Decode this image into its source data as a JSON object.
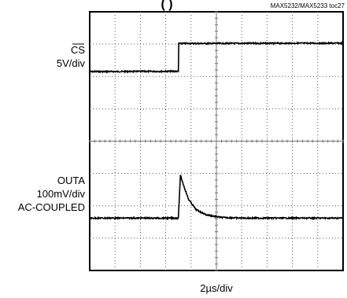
{
  "chart_data": {
    "type": "line",
    "title_fragment": "(       )",
    "part_id": "MAX5232/MAX5233 toc27",
    "channels": [
      {
        "label_lines": [
          "CS",
          "5V/div"
        ],
        "label_overline": "CS",
        "level": "upper"
      },
      {
        "label_lines": [
          "OUTA",
          "100mV/div",
          "AC-COUPLED"
        ],
        "level": "lower"
      }
    ],
    "xlabel": "2µs/div",
    "grid": true,
    "divisions": {
      "x": 10,
      "y": 8
    },
    "xlim": [
      0,
      10
    ],
    "ylim": [
      0,
      8
    ],
    "traces": [
      {
        "name": "CS",
        "points": [
          [
            0,
            6.15
          ],
          [
            3.5,
            6.16
          ],
          [
            3.51,
            7.02
          ],
          [
            10,
            7.03
          ]
        ]
      },
      {
        "name": "OUTA",
        "points": [
          [
            0,
            1.62
          ],
          [
            3.5,
            1.62
          ],
          [
            3.58,
            2.95
          ],
          [
            3.7,
            2.65
          ],
          [
            3.9,
            2.2
          ],
          [
            4.2,
            1.88
          ],
          [
            4.6,
            1.72
          ],
          [
            5.2,
            1.64
          ],
          [
            6,
            1.62
          ],
          [
            10,
            1.62
          ]
        ]
      }
    ]
  }
}
